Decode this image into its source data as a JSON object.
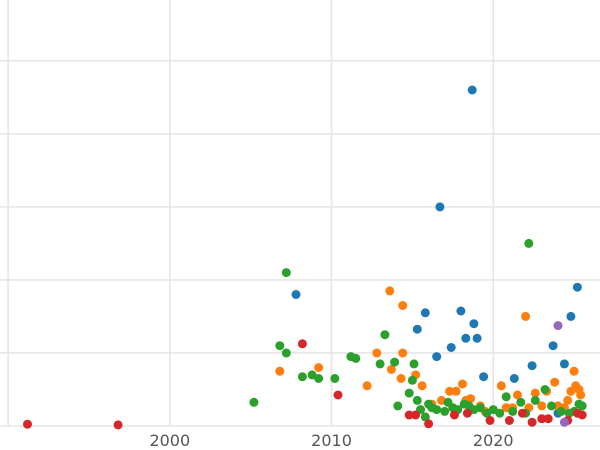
{
  "chart_data": {
    "type": "scatter",
    "title": "",
    "xlabel": "",
    "ylabel": "",
    "xlim": [
      1989.5,
      2026.6
    ],
    "ylim": [
      0,
      115
    ],
    "x_ticks": [
      1990,
      2000,
      2010,
      2020
    ],
    "x_tick_labels": [
      "",
      "2000",
      "2010",
      "2020"
    ],
    "y_gridlines": [
      0,
      20,
      40,
      60,
      80,
      100,
      120
    ],
    "grid": true,
    "legend": "none",
    "series": [
      {
        "color": "#1f77b4",
        "points": [
          [
            2007.8,
            36
          ],
          [
            2015.8,
            31
          ],
          [
            2015.3,
            26.5
          ],
          [
            2016.5,
            19
          ],
          [
            2016.7,
            60
          ],
          [
            2017.4,
            21.5
          ],
          [
            2018.0,
            31.5
          ],
          [
            2018.3,
            24
          ],
          [
            2018.7,
            92
          ],
          [
            2018.8,
            28
          ],
          [
            2019.0,
            24
          ],
          [
            2019.4,
            13.5
          ],
          [
            2021.3,
            13
          ],
          [
            2022.4,
            16.5
          ],
          [
            2023.7,
            22
          ],
          [
            2024.4,
            17
          ],
          [
            2024.8,
            30
          ],
          [
            2025.2,
            38
          ],
          [
            2024.0,
            3.5
          ]
        ]
      },
      {
        "color": "#ff7f0e",
        "points": [
          [
            2006.8,
            15
          ],
          [
            2009.2,
            16
          ],
          [
            2012.2,
            11
          ],
          [
            2012.8,
            20
          ],
          [
            2013.6,
            37
          ],
          [
            2013.7,
            15.5
          ],
          [
            2014.3,
            13
          ],
          [
            2014.4,
            33
          ],
          [
            2014.4,
            20
          ],
          [
            2015.2,
            14
          ],
          [
            2015.6,
            11
          ],
          [
            2016.2,
            6
          ],
          [
            2016.8,
            7
          ],
          [
            2017.3,
            9.5
          ],
          [
            2017.5,
            5
          ],
          [
            2017.7,
            9.5
          ],
          [
            2018.1,
            11.5
          ],
          [
            2018.3,
            7
          ],
          [
            2018.6,
            7.5
          ],
          [
            2019.2,
            5.5
          ],
          [
            2019.5,
            4
          ],
          [
            2020.5,
            11
          ],
          [
            2020.8,
            5
          ],
          [
            2021.2,
            5
          ],
          [
            2021.5,
            8.5
          ],
          [
            2022.0,
            30
          ],
          [
            2022.2,
            5
          ],
          [
            2022.6,
            9
          ],
          [
            2023.0,
            5.5
          ],
          [
            2023.3,
            9.5
          ],
          [
            2023.8,
            12
          ],
          [
            2024.4,
            5
          ],
          [
            2024.8,
            9.5
          ],
          [
            2025.0,
            15
          ],
          [
            2025.1,
            11
          ],
          [
            2025.3,
            10
          ],
          [
            2024.0,
            5.5
          ],
          [
            2025.4,
            8.5
          ],
          [
            2024.6,
            7
          ]
        ]
      },
      {
        "color": "#2ca02c",
        "points": [
          [
            2005.2,
            6.5
          ],
          [
            2006.8,
            22
          ],
          [
            2007.2,
            42
          ],
          [
            2007.2,
            20
          ],
          [
            2008.2,
            13.5
          ],
          [
            2008.8,
            14
          ],
          [
            2009.2,
            13
          ],
          [
            2010.2,
            13
          ],
          [
            2011.2,
            19
          ],
          [
            2011.5,
            18.5
          ],
          [
            2013.0,
            17
          ],
          [
            2013.3,
            25
          ],
          [
            2013.9,
            17.5
          ],
          [
            2014.1,
            5.5
          ],
          [
            2014.8,
            9
          ],
          [
            2015.0,
            12.5
          ],
          [
            2015.1,
            17
          ],
          [
            2015.3,
            7
          ],
          [
            2015.5,
            4.5
          ],
          [
            2015.8,
            2.5
          ],
          [
            2016.0,
            6
          ],
          [
            2016.2,
            5
          ],
          [
            2016.5,
            4.5
          ],
          [
            2017.0,
            4
          ],
          [
            2017.2,
            6.5
          ],
          [
            2017.5,
            5
          ],
          [
            2017.8,
            4.5
          ],
          [
            2018.2,
            6
          ],
          [
            2018.5,
            5.5
          ],
          [
            2018.8,
            4.5
          ],
          [
            2019.2,
            5
          ],
          [
            2019.6,
            3.5
          ],
          [
            2020.0,
            4.5
          ],
          [
            2020.4,
            3.5
          ],
          [
            2020.8,
            8
          ],
          [
            2021.2,
            4
          ],
          [
            2021.7,
            6.5
          ],
          [
            2022.0,
            3.5
          ],
          [
            2022.2,
            50
          ],
          [
            2022.6,
            7
          ],
          [
            2023.2,
            10
          ],
          [
            2023.6,
            5.5
          ],
          [
            2024.2,
            4
          ],
          [
            2024.7,
            3.5
          ],
          [
            2025.3,
            6
          ],
          [
            2025.5,
            5.5
          ],
          [
            2025.0,
            4
          ]
        ]
      },
      {
        "color": "#d62728",
        "points": [
          [
            1991.2,
            0.5
          ],
          [
            1996.8,
            0.3
          ],
          [
            2008.2,
            22.5
          ],
          [
            2010.4,
            8.5
          ],
          [
            2014.8,
            3
          ],
          [
            2015.2,
            3
          ],
          [
            2016.0,
            0.6
          ],
          [
            2017.6,
            3
          ],
          [
            2018.4,
            3.5
          ],
          [
            2019.8,
            1.5
          ],
          [
            2021.0,
            1.5
          ],
          [
            2021.8,
            3.5
          ],
          [
            2022.4,
            1
          ],
          [
            2023.0,
            2
          ],
          [
            2023.4,
            2
          ],
          [
            2024.6,
            1.5
          ],
          [
            2025.2,
            3.5
          ],
          [
            2025.5,
            3
          ]
        ]
      },
      {
        "color": "#9467bd",
        "points": [
          [
            2024.0,
            27.5
          ],
          [
            2024.4,
            1
          ]
        ]
      }
    ]
  }
}
